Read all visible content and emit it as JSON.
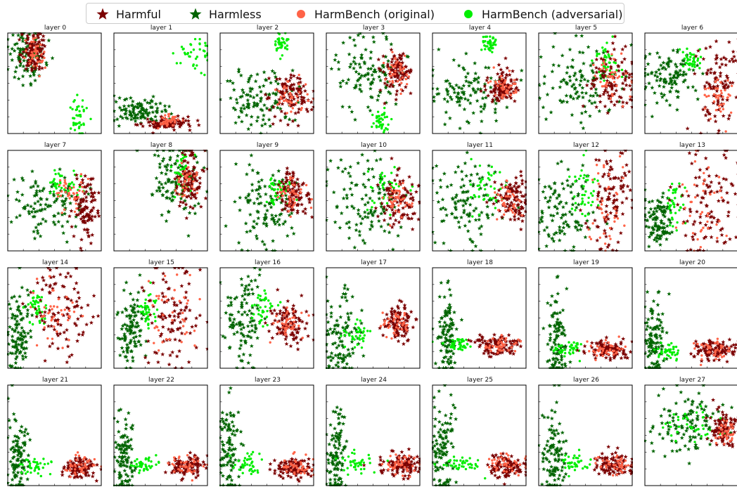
{
  "legend": [
    {
      "label": "Harmful",
      "marker": "star",
      "color": "#7b0000"
    },
    {
      "label": "Harmless",
      "marker": "star",
      "color": "#006400"
    },
    {
      "label": "HarmBench (original)",
      "marker": "circle",
      "color": "#ff6347"
    },
    {
      "label": "HarmBench (adversarial)",
      "marker": "circle",
      "color": "#00ee00"
    }
  ],
  "chart_data": {
    "type": "scatter",
    "series_colors": {
      "harmful": "#7b0000",
      "harmless": "#006400",
      "hb_original": "#ff6347",
      "hb_adversarial": "#00ee00"
    },
    "panels": [
      {
        "title": "layer 0",
        "xlim": [
          -1.5,
          4.5
        ],
        "ylim": [
          -1.2,
          1.1
        ],
        "clusters": {
          "harmful": [
            0.2,
            0.7,
            0.4,
            0.25
          ],
          "harmless": [
            -0.2,
            0.6,
            0.6,
            0.3
          ],
          "hb_original": [
            0.2,
            0.6,
            0.35,
            0.2
          ],
          "hb_adversarial": [
            3.0,
            -0.8,
            0.4,
            0.25
          ]
        }
      },
      {
        "title": "layer 1",
        "xlim": [
          -1.0,
          3.0
        ],
        "ylim": [
          -0.3,
          1.6
        ],
        "clusters": {
          "harmful": [
            1.3,
            -0.1,
            0.5,
            0.06
          ],
          "harmless": [
            0.0,
            0.1,
            0.6,
            0.12
          ],
          "hb_original": [
            1.4,
            -0.05,
            0.35,
            0.06
          ],
          "hb_adversarial": [
            2.4,
            1.2,
            0.35,
            0.2
          ]
        }
      },
      {
        "title": "layer 2",
        "xlim": [
          -1.5,
          3.5
        ],
        "ylim": [
          -1.0,
          3.5
        ],
        "clusters": {
          "harmful": [
            2.3,
            0.7,
            0.6,
            0.5
          ],
          "harmless": [
            0.5,
            0.5,
            0.9,
            0.7
          ],
          "hb_original": [
            2.3,
            0.6,
            0.5,
            0.4
          ],
          "hb_adversarial": [
            1.8,
            3.0,
            0.25,
            0.3
          ]
        }
      },
      {
        "title": "layer 3",
        "xlim": [
          -1.0,
          1.0
        ],
        "ylim": [
          -1.2,
          1.6
        ],
        "clusters": {
          "harmful": [
            0.55,
            0.6,
            0.15,
            0.3
          ],
          "harmless": [
            -0.1,
            0.5,
            0.4,
            0.5
          ],
          "hb_original": [
            0.55,
            0.55,
            0.1,
            0.25
          ],
          "hb_adversarial": [
            0.15,
            -0.85,
            0.1,
            0.15
          ]
        }
      },
      {
        "title": "layer 4",
        "xlim": [
          -1.5,
          1.5
        ],
        "ylim": [
          -1.2,
          2.3
        ],
        "clusters": {
          "harmful": [
            0.8,
            0.4,
            0.25,
            0.3
          ],
          "harmless": [
            -0.3,
            0.2,
            0.7,
            0.5
          ],
          "hb_original": [
            0.8,
            0.35,
            0.2,
            0.25
          ],
          "hb_adversarial": [
            0.3,
            1.9,
            0.15,
            0.15
          ]
        }
      },
      {
        "title": "layer 5",
        "xlim": [
          -1.5,
          1.0
        ],
        "ylim": [
          -1.1,
          1.3
        ],
        "clusters": {
          "harmful": [
            0.5,
            0.2,
            0.3,
            0.35
          ],
          "harmless": [
            -0.5,
            0.1,
            0.5,
            0.45
          ],
          "hb_original": [
            0.45,
            0.15,
            0.25,
            0.3
          ],
          "hb_adversarial": [
            0.3,
            0.6,
            0.15,
            0.3
          ]
        }
      },
      {
        "title": "layer 6",
        "xlim": [
          -1.0,
          1.5
        ],
        "ylim": [
          -1.2,
          1.5
        ],
        "clusters": {
          "harmful": [
            0.9,
            0.2,
            0.3,
            0.55
          ],
          "harmless": [
            -0.4,
            0.3,
            0.4,
            0.4
          ],
          "hb_original": [
            1.0,
            -0.3,
            0.2,
            0.3
          ],
          "hb_adversarial": [
            0.2,
            0.8,
            0.15,
            0.15
          ]
        }
      },
      {
        "title": "layer 7",
        "xlim": [
          -1.5,
          1.5
        ],
        "ylim": [
          -1.5,
          1.8
        ],
        "clusters": {
          "harmful": [
            1.0,
            -0.2,
            0.2,
            0.6
          ],
          "harmless": [
            -0.3,
            0.0,
            0.6,
            0.45
          ],
          "hb_original": [
            0.5,
            0.4,
            0.3,
            0.3
          ],
          "hb_adversarial": [
            0.3,
            0.7,
            0.25,
            0.2
          ]
        }
      },
      {
        "title": "layer 8",
        "xlim": [
          -6.0,
          2.5
        ],
        "ylim": [
          -1.5,
          2.5
        ],
        "clusters": {
          "harmful": [
            1.0,
            1.3,
            0.6,
            0.6
          ],
          "harmless": [
            -0.3,
            1.3,
            1.3,
            0.8
          ],
          "hb_original": [
            0.8,
            1.3,
            0.5,
            0.4
          ],
          "hb_adversarial": [
            0.2,
            1.5,
            0.4,
            0.4
          ]
        }
      },
      {
        "title": "layer 9",
        "xlim": [
          -3.5,
          3.5
        ],
        "ylim": [
          -3.5,
          3.5
        ],
        "clusters": {
          "harmful": [
            2.0,
            0.5,
            0.6,
            0.8
          ],
          "harmless": [
            0.0,
            -0.5,
            1.2,
            1.5
          ],
          "hb_original": [
            1.8,
            0.3,
            0.5,
            0.6
          ],
          "hb_adversarial": [
            1.0,
            0.8,
            0.6,
            0.6
          ]
        }
      },
      {
        "title": "layer 10",
        "xlim": [
          -3.5,
          3.5
        ],
        "ylim": [
          -3.5,
          3.5
        ],
        "clusters": {
          "harmful": [
            2.0,
            0.0,
            0.7,
            0.9
          ],
          "harmless": [
            -0.5,
            0.0,
            1.3,
            1.6
          ],
          "hb_original": [
            1.8,
            -0.1,
            0.5,
            0.6
          ],
          "hb_adversarial": [
            1.0,
            1.0,
            0.7,
            0.8
          ]
        }
      },
      {
        "title": "layer 11",
        "xlim": [
          -3.5,
          3.5
        ],
        "ylim": [
          -3.5,
          3.5
        ],
        "clusters": {
          "harmful": [
            2.5,
            0.0,
            0.6,
            1.0
          ],
          "harmless": [
            -1.0,
            0.0,
            1.3,
            1.6
          ],
          "hb_original": [
            2.2,
            0.3,
            0.5,
            0.8
          ],
          "hb_adversarial": [
            0.5,
            1.0,
            0.7,
            0.9
          ]
        }
      },
      {
        "title": "layer 12",
        "xlim": [
          -3.0,
          6.5
        ],
        "ylim": [
          -3.5,
          3.5
        ],
        "clusters": {
          "harmful": [
            4.5,
            0.0,
            1.2,
            1.8
          ],
          "harmless": [
            -0.5,
            -0.5,
            1.5,
            1.5
          ],
          "hb_original": [
            3.8,
            0.2,
            1.0,
            1.5
          ],
          "hb_adversarial": [
            1.5,
            1.0,
            0.8,
            1.0
          ]
        }
      },
      {
        "title": "layer 13",
        "xlim": [
          -4.0,
          7.0
        ],
        "ylim": [
          -4.0,
          4.5
        ],
        "clusters": {
          "harmful": [
            3.5,
            0.0,
            1.8,
            2.2
          ],
          "harmless": [
            -2.5,
            -1.5,
            0.8,
            1.2
          ],
          "hb_original": [
            3.0,
            0.0,
            1.5,
            2.0
          ],
          "hb_adversarial": [
            -0.5,
            0.2,
            0.6,
            1.0
          ]
        }
      },
      {
        "title": "layer 14",
        "xlim": [
          -4.0,
          9.0
        ],
        "ylim": [
          -5.0,
          5.0
        ],
        "clusters": {
          "harmful": [
            3.5,
            0.5,
            2.2,
            2.2
          ],
          "harmless": [
            -2.5,
            -1.5,
            0.8,
            2.0
          ],
          "hb_original": [
            3.0,
            0.5,
            1.8,
            1.8
          ],
          "hb_adversarial": [
            0.0,
            1.0,
            0.8,
            0.8
          ]
        }
      },
      {
        "title": "layer 15",
        "xlim": [
          -5.0,
          9.0
        ],
        "ylim": [
          -5.0,
          5.0
        ],
        "clusters": {
          "harmful": [
            4.0,
            0.5,
            2.2,
            2.5
          ],
          "harmless": [
            -2.5,
            -1.0,
            1.0,
            2.0
          ],
          "hb_original": [
            3.5,
            0.5,
            2.0,
            2.0
          ],
          "hb_adversarial": [
            0.0,
            1.0,
            0.8,
            0.8
          ]
        }
      },
      {
        "title": "layer 16",
        "xlim": [
          -4.0,
          10.0
        ],
        "ylim": [
          -4.0,
          5.0
        ],
        "clusters": {
          "harmful": [
            6.5,
            0.0,
            1.5,
            1.0
          ],
          "harmless": [
            -0.5,
            0.5,
            1.5,
            2.2
          ],
          "hb_original": [
            6.0,
            0.0,
            1.2,
            0.8
          ],
          "hb_adversarial": [
            2.5,
            1.5,
            1.0,
            0.7
          ]
        }
      },
      {
        "title": "layer 17",
        "xlim": [
          -5.0,
          10.0
        ],
        "ylim": [
          -4.0,
          7.0
        ],
        "clusters": {
          "harmful": [
            6.5,
            1.0,
            1.2,
            1.0
          ],
          "harmless": [
            -2.5,
            -0.5,
            1.5,
            2.5
          ],
          "hb_original": [
            6.0,
            0.8,
            1.2,
            0.8
          ],
          "hb_adversarial": [
            0.0,
            -0.5,
            1.2,
            0.7
          ]
        }
      },
      {
        "title": "layer 18",
        "xlim": [
          -2.5,
          10.0
        ],
        "ylim": [
          -3.0,
          10.0
        ],
        "clusters": {
          "harmful": [
            6.0,
            0.0,
            1.5,
            0.6
          ],
          "harmless": [
            -0.5,
            1.0,
            0.7,
            3.0
          ],
          "hb_original": [
            6.0,
            0.0,
            1.5,
            0.6
          ],
          "hb_adversarial": [
            1.0,
            0.0,
            1.0,
            0.5
          ]
        }
      },
      {
        "title": "layer 19",
        "xlim": [
          -4.0,
          15.0
        ],
        "ylim": [
          -3.0,
          13.0
        ],
        "clusters": {
          "harmful": [
            10.0,
            0.0,
            2.0,
            0.8
          ],
          "harmless": [
            0.0,
            1.5,
            1.0,
            3.5
          ],
          "hb_original": [
            10.0,
            0.2,
            2.0,
            0.8
          ],
          "hb_adversarial": [
            2.5,
            0.0,
            1.5,
            0.6
          ]
        }
      },
      {
        "title": "layer 20",
        "xlim": [
          -3.0,
          25.0
        ],
        "ylim": [
          -3.0,
          16.0
        ],
        "clusters": {
          "harmful": [
            18.0,
            0.5,
            3.0,
            1.0
          ],
          "harmless": [
            0.0,
            2.0,
            1.5,
            4.0
          ],
          "hb_original": [
            18.0,
            0.5,
            3.0,
            1.0
          ],
          "hb_adversarial": [
            4.0,
            0.0,
            2.0,
            0.8
          ]
        }
      },
      {
        "title": "layer 21",
        "xlim": [
          -4.0,
          30.0
        ],
        "ylim": [
          -5.0,
          18.0
        ],
        "clusters": {
          "harmful": [
            22.0,
            -1.0,
            3.0,
            1.2
          ],
          "harmless": [
            0.0,
            1.0,
            2.0,
            5.0
          ],
          "hb_original": [
            22.0,
            -0.5,
            3.0,
            1.2
          ],
          "hb_adversarial": [
            6.0,
            -0.5,
            3.0,
            1.0
          ]
        }
      },
      {
        "title": "layer 22",
        "xlim": [
          -4.0,
          32.0
        ],
        "ylim": [
          -6.0,
          20.0
        ],
        "clusters": {
          "harmful": [
            24.0,
            -1.0,
            3.5,
            1.3
          ],
          "harmless": [
            0.0,
            1.5,
            2.0,
            6.0
          ],
          "hb_original": [
            24.0,
            -0.5,
            3.5,
            1.3
          ],
          "hb_adversarial": [
            7.0,
            -0.5,
            3.0,
            1.0
          ]
        }
      },
      {
        "title": "layer 23",
        "xlim": [
          -4.0,
          35.0
        ],
        "ylim": [
          -6.0,
          21.0
        ],
        "clusters": {
          "harmful": [
            27.0,
            -1.0,
            4.0,
            1.5
          ],
          "harmless": [
            0.0,
            2.0,
            2.2,
            6.5
          ],
          "hb_original": [
            27.0,
            -0.5,
            4.0,
            1.5
          ],
          "hb_adversarial": [
            8.0,
            -0.5,
            3.5,
            1.2
          ]
        }
      },
      {
        "title": "layer 24",
        "xlim": [
          -5.0,
          38.0
        ],
        "ylim": [
          -7.0,
          22.0
        ],
        "clusters": {
          "harmful": [
            29.0,
            -1.0,
            4.5,
            1.7
          ],
          "harmless": [
            0.0,
            2.0,
            2.5,
            7.0
          ],
          "hb_original": [
            29.0,
            -0.5,
            4.5,
            1.7
          ],
          "hb_adversarial": [
            9.0,
            -0.5,
            4.0,
            1.3
          ]
        }
      },
      {
        "title": "layer 25",
        "xlim": [
          -5.0,
          40.0
        ],
        "ylim": [
          -7.0,
          24.0
        ],
        "clusters": {
          "harmful": [
            31.0,
            -1.0,
            5.0,
            1.8
          ],
          "harmless": [
            0.0,
            2.0,
            2.7,
            7.5
          ],
          "hb_original": [
            31.0,
            -0.5,
            5.0,
            1.8
          ],
          "hb_adversarial": [
            10.0,
            -0.5,
            4.5,
            1.4
          ]
        }
      },
      {
        "title": "layer 26",
        "xlim": [
          -5.0,
          43.0
        ],
        "ylim": [
          -8.0,
          26.0
        ],
        "clusters": {
          "harmful": [
            34.0,
            -1.5,
            5.0,
            2.0
          ],
          "harmless": [
            3.0,
            3.0,
            3.0,
            8.0
          ],
          "hb_original": [
            34.0,
            -1.0,
            5.0,
            2.0
          ],
          "hb_adversarial": [
            14.0,
            0.0,
            4.0,
            1.5
          ]
        }
      },
      {
        "title": "layer 27",
        "xlim": [
          -30.0,
          30.0
        ],
        "ylim": [
          -25.0,
          25.0
        ],
        "clusters": {
          "harmful": [
            20.0,
            3.0,
            5.0,
            4.0
          ],
          "harmless": [
            -5.0,
            5.0,
            12.0,
            9.0
          ],
          "hb_original": [
            22.0,
            2.0,
            4.0,
            3.0
          ],
          "hb_adversarial": [
            0.0,
            5.0,
            8.0,
            5.0
          ]
        }
      }
    ]
  }
}
